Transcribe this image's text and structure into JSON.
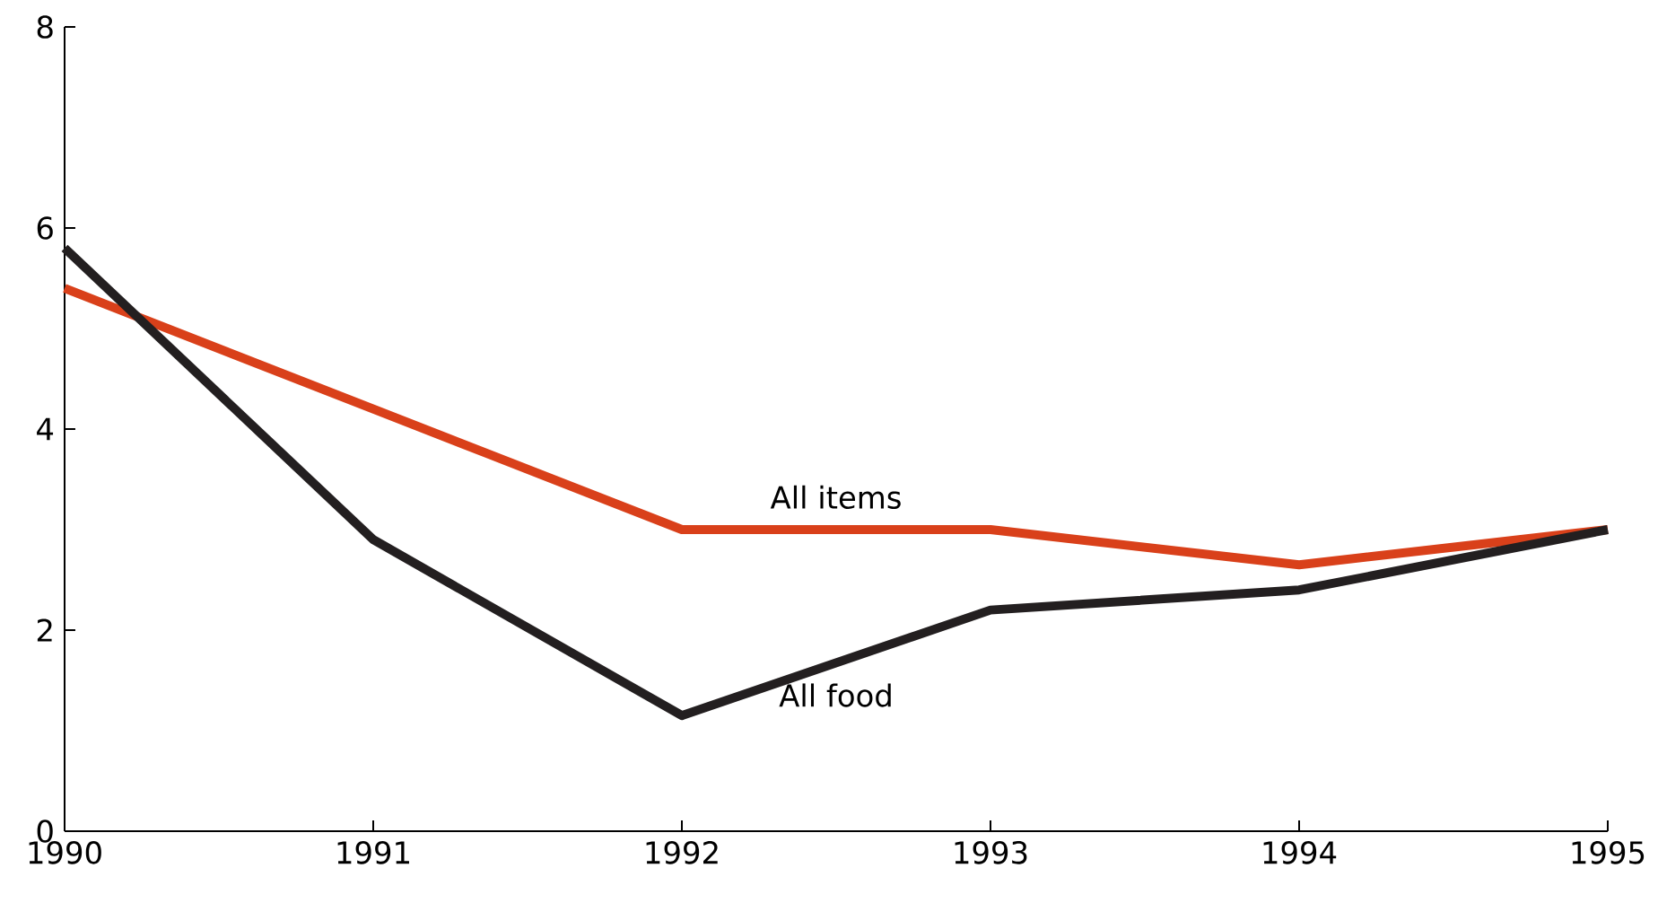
{
  "chart_data": {
    "type": "line",
    "x": [
      1990,
      1991,
      1992,
      1993,
      1994,
      1995
    ],
    "series": [
      {
        "name": "All items",
        "color": "#d9401a",
        "values": [
          5.4,
          4.2,
          3.0,
          3.0,
          2.65,
          3.0
        ]
      },
      {
        "name": "All food",
        "color": "#231f20",
        "values": [
          5.8,
          2.9,
          1.15,
          2.2,
          2.4,
          3.0
        ]
      }
    ],
    "xlim": [
      1990,
      1995
    ],
    "ylim": [
      0,
      8
    ],
    "xticks": [
      1990,
      1991,
      1992,
      1993,
      1994,
      1995
    ],
    "yticks": [
      0,
      2,
      4,
      6,
      8
    ]
  }
}
